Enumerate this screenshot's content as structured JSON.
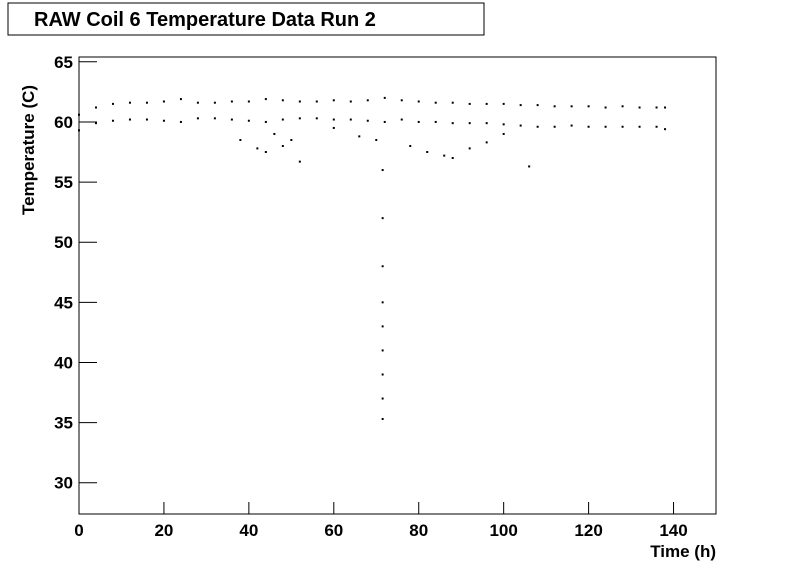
{
  "chart_data": {
    "type": "scatter",
    "title": "RAW Coil 6 Temperature Data Run 2",
    "x_label": "Time (h)",
    "y_label": "Temperature (C)",
    "color": "#000000",
    "xlim": [
      0,
      150
    ],
    "ylim": [
      27.4,
      65.4
    ],
    "xticks": [
      0,
      20,
      40,
      60,
      80,
      100,
      120,
      140
    ],
    "yticks": [
      30,
      35,
      40,
      45,
      50,
      55,
      60,
      65
    ],
    "x": [
      0,
      0,
      4,
      4,
      8,
      8,
      12,
      12,
      16,
      16,
      20,
      20,
      24,
      24,
      28,
      28,
      32,
      32,
      36,
      36,
      40,
      40,
      44,
      44,
      48,
      48,
      52,
      52,
      56,
      56,
      60,
      60,
      64,
      64,
      68,
      68,
      72,
      72,
      76,
      76,
      80,
      80,
      84,
      84,
      88,
      88,
      92,
      92,
      96,
      96,
      100,
      100,
      104,
      104,
      108,
      108,
      112,
      112,
      116,
      116,
      120,
      120,
      124,
      124,
      128,
      128,
      132,
      132,
      136,
      136,
      138,
      138,
      38,
      42,
      44,
      46,
      48,
      50,
      52,
      60,
      66,
      70,
      71.5,
      71.5,
      71.5,
      71.5,
      71.5,
      71.5,
      71.5,
      71.5,
      71.5,
      78,
      82,
      86,
      88,
      92,
      96,
      100,
      106
    ],
    "y": [
      59.3,
      60.6,
      59.9,
      61.2,
      60.1,
      61.5,
      60.2,
      61.6,
      60.2,
      61.6,
      60.1,
      61.7,
      60.0,
      61.9,
      60.3,
      61.6,
      60.3,
      61.6,
      60.2,
      61.7,
      60.1,
      61.7,
      60.0,
      61.9,
      60.2,
      61.8,
      60.3,
      61.7,
      60.3,
      61.7,
      60.2,
      61.8,
      60.2,
      61.7,
      60.1,
      61.8,
      60.0,
      62.0,
      60.2,
      61.8,
      60.0,
      61.7,
      60.0,
      61.6,
      59.9,
      61.6,
      59.9,
      61.5,
      59.9,
      61.5,
      59.8,
      61.5,
      59.7,
      61.4,
      59.6,
      61.4,
      59.6,
      61.3,
      59.7,
      61.3,
      59.6,
      61.3,
      59.6,
      61.2,
      59.6,
      61.3,
      59.6,
      61.2,
      59.6,
      61.2,
      59.4,
      61.2,
      58.5,
      57.8,
      57.5,
      59,
      58,
      58.5,
      56.7,
      59.5,
      58.8,
      58.5,
      35.3,
      37,
      39,
      41,
      43,
      45,
      48,
      52,
      56,
      58,
      57.5,
      57.2,
      57,
      57.8,
      58.3,
      59,
      56.3
    ]
  }
}
